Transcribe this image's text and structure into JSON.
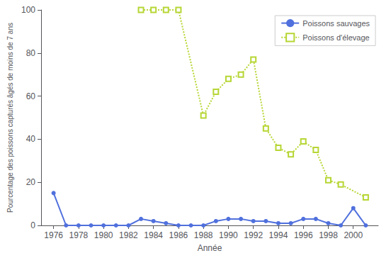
{
  "chart_data": {
    "type": "line",
    "xlabel": "Année",
    "ylabel": "Pourcentage des poissons capturés âgés de moins de 7 ans",
    "series": [
      {
        "name": "Poissons sauvages",
        "marker": "circle",
        "line_style": "solid",
        "x": [
          1976,
          1977,
          1978,
          1979,
          1980,
          1981,
          1982,
          1983,
          1984,
          1985,
          1986,
          1987,
          1988,
          1989,
          1990,
          1991,
          1992,
          1993,
          1994,
          1995,
          1996,
          1997,
          1998,
          1999,
          2000,
          2001
        ],
        "values": [
          15,
          0,
          0,
          0,
          0,
          0,
          0,
          3,
          2,
          1,
          0,
          0,
          0,
          2,
          3,
          3,
          2,
          2,
          1,
          1,
          3,
          3,
          1,
          0,
          8,
          0
        ]
      },
      {
        "name": "Poissons d'élevage",
        "marker": "square",
        "line_style": "dotted",
        "x": [
          1983,
          1984,
          1985,
          1986,
          1988,
          1989,
          1990,
          1991,
          1992,
          1993,
          1994,
          1995,
          1996,
          1997,
          1998,
          1999,
          2001
        ],
        "values": [
          100,
          100,
          100,
          100,
          51,
          62,
          68,
          70,
          77,
          45,
          36,
          33,
          39,
          35,
          21,
          19,
          13
        ]
      }
    ],
    "xlim": [
      1975,
      2002
    ],
    "xticks": [
      1976,
      1978,
      1980,
      1982,
      1984,
      1986,
      1988,
      1990,
      1992,
      1994,
      1996,
      1998,
      2000
    ],
    "ylim": [
      0,
      100
    ],
    "yticks": [
      0,
      20,
      40,
      60,
      80,
      100
    ],
    "grid": false,
    "legend": "upper right"
  }
}
